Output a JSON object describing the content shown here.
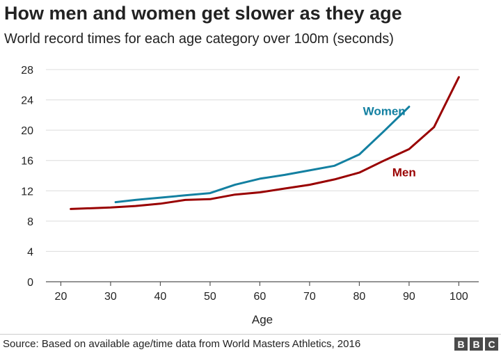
{
  "header": {
    "title": "How men and women get slower as they age",
    "subtitle": "World record times for each age category over 100m (seconds)"
  },
  "footer": {
    "source": "Source: Based on available age/time data from World Masters Athletics, 2016",
    "logo_letters": [
      "B",
      "B",
      "C"
    ]
  },
  "chart_data": {
    "type": "line",
    "title": "How men and women get slower as they age",
    "subtitle": "World record times for each age category over 100m (seconds)",
    "xlabel": "Age",
    "ylabel": "",
    "xlim": [
      17,
      104
    ],
    "ylim": [
      0,
      28
    ],
    "xticks": [
      20,
      30,
      40,
      50,
      60,
      70,
      80,
      90,
      100
    ],
    "yticks": [
      0,
      4,
      8,
      12,
      16,
      20,
      24,
      28
    ],
    "grid": "horizontal",
    "series": [
      {
        "name": "Women",
        "color": "#1380A1",
        "label_at": [
          85,
          22
        ],
        "x": [
          31,
          35,
          40,
          45,
          50,
          55,
          60,
          65,
          70,
          75,
          80,
          85,
          90
        ],
        "y": [
          10.5,
          10.8,
          11.1,
          11.4,
          11.7,
          12.8,
          13.6,
          14.1,
          14.7,
          15.3,
          16.8,
          19.9,
          23.1
        ]
      },
      {
        "name": "Men",
        "color": "#990000",
        "label_at": [
          89,
          13.9
        ],
        "x": [
          22,
          30,
          35,
          40,
          45,
          50,
          55,
          60,
          65,
          70,
          75,
          80,
          85,
          90,
          95,
          100
        ],
        "y": [
          9.6,
          9.8,
          10.0,
          10.3,
          10.8,
          10.9,
          11.5,
          11.8,
          12.3,
          12.8,
          13.5,
          14.4,
          16.0,
          17.5,
          20.4,
          27.0
        ]
      }
    ]
  }
}
